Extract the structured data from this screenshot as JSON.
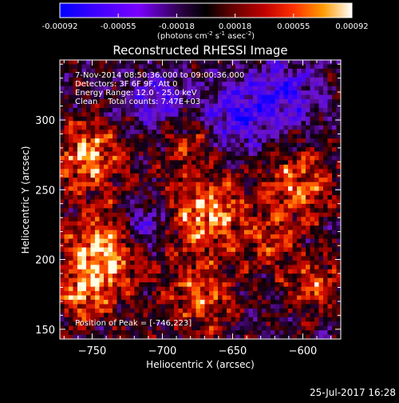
{
  "chart_data": {
    "type": "heatmap",
    "title": "Reconstructed RHESSI Image",
    "xlabel": "Heliocentric X (arcsec)",
    "ylabel": "Heliocentric Y (arcsec)",
    "xlim": [
      -773,
      -573
    ],
    "ylim": [
      143,
      343
    ],
    "xticks": [
      -750,
      -700,
      -650,
      -600
    ],
    "yticks": [
      150,
      200,
      250,
      300
    ],
    "grid": false,
    "colorbar": {
      "position": "top",
      "ticks": [
        "-0.00092",
        "-0.00055",
        "-0.00018",
        "0.00018",
        "0.00055",
        "0.00092"
      ],
      "range": [
        -0.00092,
        0.00092
      ],
      "units_main": "(photons cm",
      "units_sup1": "-2",
      "units_mid1": " s",
      "units_sup2": "-1",
      "units_mid2": " asec",
      "units_sup3": "-2",
      "units_end": ")"
    },
    "annotations": {
      "time_range": "7-Nov-2014 08:50:36.000 to 09:00:36.000",
      "detectors": "Detectors: 3F 6F 9F, Att 0",
      "energy_range": "Energy Range: 12.0 - 25.0 keV",
      "clean": "Clean    Total counts: 7.47E+03",
      "peak": "Position of Peak = [-746,223]"
    },
    "peak_position": [
      -746,
      223
    ],
    "grid_size": [
      64,
      64
    ]
  },
  "footer": {
    "timestamp": "25-Jul-2017 16:28"
  }
}
